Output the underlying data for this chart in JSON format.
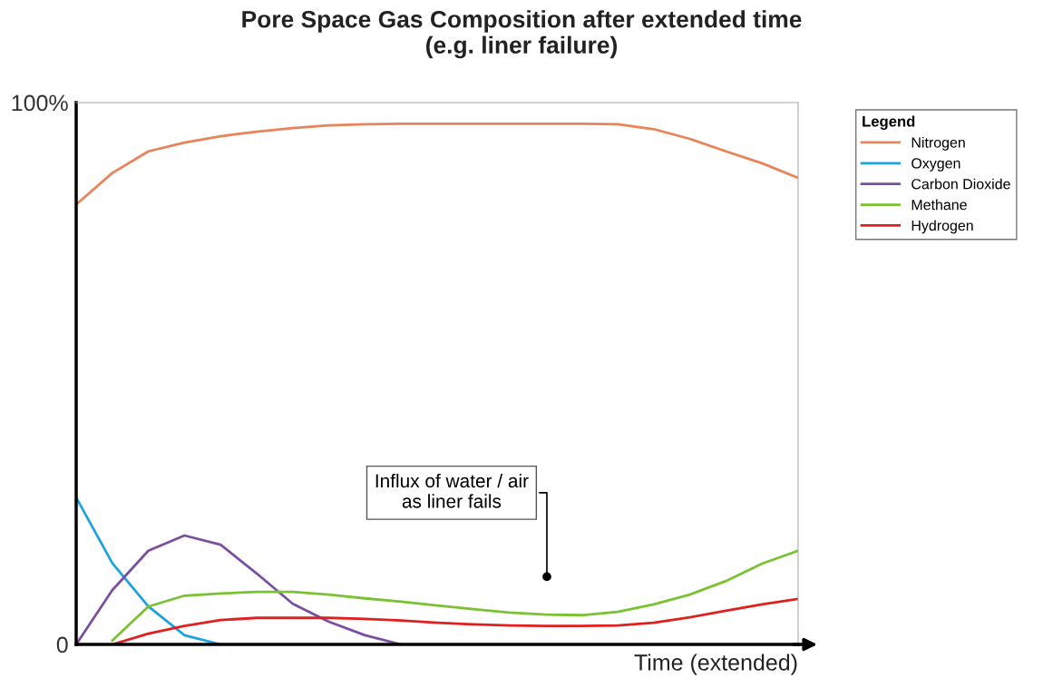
{
  "chart_data": {
    "type": "line",
    "title": "Pore Space Gas Composition after extended time\n(e.g. liner failure)",
    "xlabel": "Time (extended)",
    "categories": [
      null,
      null,
      null,
      null,
      null,
      null,
      null,
      null,
      null,
      null,
      null,
      null,
      null,
      null,
      null,
      null,
      null,
      null,
      null,
      null,
      null
    ],
    "series": [
      {
        "name": "Nitrogen",
        "color": "#e8845a",
        "values": [
          81.2,
          87,
          91,
          92.6,
          93.8,
          94.6,
          95.3,
          95.8,
          96,
          96.1,
          96.1,
          96.1,
          96.1,
          96.1,
          96.1,
          96,
          95.1,
          93.3,
          91,
          88.8,
          86.1
        ]
      },
      {
        "name": "Oxygen",
        "color": "#1fa3e0",
        "values": [
          27.1,
          15,
          7,
          1.7,
          0,
          null,
          null,
          null,
          null,
          null,
          null,
          null,
          null,
          null,
          null,
          null,
          null,
          null,
          null,
          null,
          null
        ]
      },
      {
        "name": "Carbon Dioxide",
        "color": "#7b4fa0",
        "values": [
          0,
          10,
          17.3,
          20.1,
          18.4,
          13.1,
          7.5,
          4.2,
          1.7,
          0,
          null,
          null,
          null,
          null,
          null,
          null,
          null,
          null,
          null,
          null,
          null
        ]
      },
      {
        "name": "Methane",
        "color": "#7ac231",
        "values": [
          null,
          0.7,
          7,
          9,
          9.4,
          9.7,
          9.7,
          9.2,
          8.5,
          7.9,
          7.2,
          6.5,
          5.9,
          5.5,
          5.4,
          6,
          7.4,
          9.2,
          11.7,
          14.9,
          17.3
        ]
      },
      {
        "name": "Hydrogen",
        "color": "#e0201e",
        "values": [
          null,
          0,
          2,
          3.4,
          4.5,
          4.9,
          4.9,
          4.9,
          4.7,
          4.4,
          4,
          3.7,
          3.5,
          3.4,
          3.4,
          3.5,
          4,
          5,
          6.2,
          7.4,
          8.4
        ]
      }
    ],
    "ylim": [
      0,
      100
    ],
    "yticks": [
      0,
      {
        "value": 100,
        "label": "100%"
      }
    ],
    "legend": "top right",
    "legend_title": "Legend",
    "grid": false,
    "annotations": [
      "Influx of water / air\nas liner fails"
    ]
  }
}
